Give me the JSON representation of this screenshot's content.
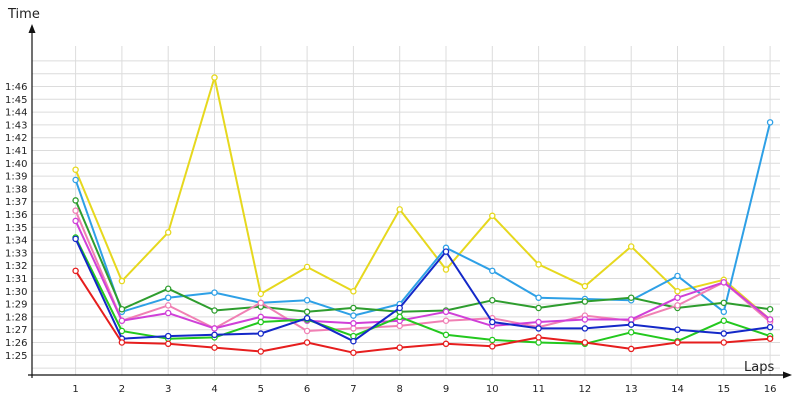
{
  "chart_data": {
    "type": "line",
    "title": "",
    "xlabel": "Laps",
    "ylabel": "Time",
    "x": [
      1,
      2,
      3,
      4,
      5,
      6,
      7,
      8,
      9,
      10,
      11,
      12,
      13,
      14,
      15,
      16
    ],
    "x_tick_labels": [
      "1",
      "2",
      "3",
      "4",
      "5",
      "6",
      "7",
      "8",
      "9",
      "10",
      "11",
      "12",
      "13",
      "14",
      "15",
      "16"
    ],
    "y_tick_labels": [
      "1:25",
      "1:26",
      "1:27",
      "1:28",
      "1:29",
      "1:30",
      "1:31",
      "1:32",
      "1:33",
      "1:34",
      "1:35",
      "1:36",
      "1:37",
      "1:38",
      "1:39",
      "1:40",
      "1:41",
      "1:42",
      "1:43",
      "1:44",
      "1:45",
      "1:46"
    ],
    "ylim": [
      84,
      107
    ],
    "grid": true,
    "legend": "none",
    "series": [
      {
        "color": "#e6d81e",
        "values": [
          99.5,
          90.8,
          94.6,
          106.7,
          89.8,
          91.9,
          90.0,
          96.4,
          91.7,
          95.9,
          92.1,
          90.4,
          93.5,
          90.0,
          90.9,
          87.8
        ]
      },
      {
        "color": "#2ea0e6",
        "values": [
          98.7,
          88.4,
          89.5,
          89.9,
          89.1,
          89.3,
          88.1,
          89.0,
          93.4,
          91.6,
          89.5,
          89.4,
          89.3,
          91.2,
          88.4,
          103.2
        ]
      },
      {
        "color": "#2e9d2e",
        "values": [
          97.1,
          88.6,
          90.2,
          88.5,
          88.8,
          88.4,
          88.7,
          88.4,
          88.5,
          89.3,
          88.7,
          89.2,
          89.5,
          88.7,
          89.1,
          88.6
        ]
      },
      {
        "color": "#f080b4",
        "values": [
          96.3,
          87.7,
          88.9,
          87.1,
          89.1,
          86.9,
          87.1,
          87.3,
          87.7,
          87.9,
          87.2,
          88.1,
          87.7,
          88.9,
          90.7,
          87.6
        ]
      },
      {
        "color": "#d040d8",
        "values": [
          95.5,
          87.7,
          88.3,
          87.1,
          88.0,
          87.7,
          87.5,
          87.7,
          88.4,
          87.3,
          87.6,
          87.8,
          87.8,
          89.5,
          90.7,
          87.8
        ]
      },
      {
        "color": "#23c81e",
        "values": [
          94.2,
          86.9,
          86.3,
          86.4,
          87.6,
          87.8,
          86.5,
          88.0,
          86.6,
          86.2,
          86.0,
          85.9,
          86.8,
          86.1,
          87.7,
          86.5
        ]
      },
      {
        "color": "#1428c8",
        "values": [
          94.1,
          86.3,
          86.5,
          86.6,
          86.7,
          87.9,
          86.1,
          88.7,
          93.1,
          87.6,
          87.1,
          87.1,
          87.4,
          87.0,
          86.7,
          87.2
        ]
      },
      {
        "color": "#e61e1e",
        "values": [
          91.6,
          86.0,
          85.9,
          85.6,
          85.3,
          86.0,
          85.2,
          85.6,
          85.9,
          85.7,
          86.4,
          86.0,
          85.5,
          86.0,
          86.0,
          86.3
        ]
      }
    ]
  }
}
